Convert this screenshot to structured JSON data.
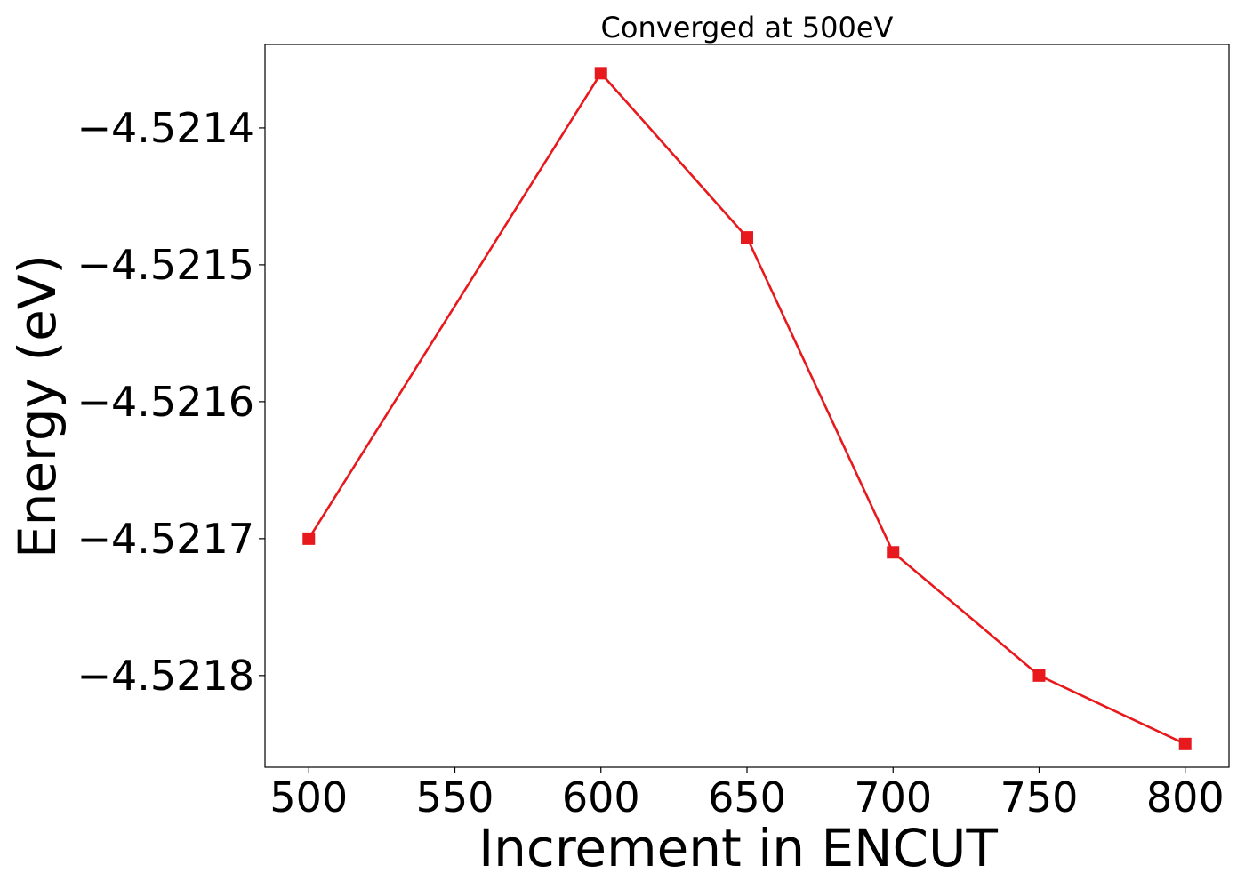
{
  "chart_data": {
    "type": "line",
    "title": "Converged at 500eV",
    "xlabel": "Increment in ENCUT",
    "ylabel": "Energy (eV)",
    "x": [
      500,
      600,
      650,
      700,
      750,
      800
    ],
    "series": [
      {
        "values": [
          -4.5217,
          -4.52136,
          -4.52148,
          -4.52171,
          -4.5218,
          -4.52185
        ],
        "color": "#e8191c",
        "marker": "square"
      }
    ],
    "xlim": [
      485,
      815
    ],
    "ylim": [
      -4.521867,
      -4.521339
    ],
    "xticks": [
      500,
      550,
      600,
      650,
      700,
      750,
      800
    ],
    "yticks": [
      -4.5218,
      -4.5217,
      -4.5216,
      -4.5215,
      -4.5214
    ],
    "xtick_labels": [
      "500",
      "550",
      "600",
      "650",
      "700",
      "750",
      "800"
    ],
    "ytick_labels": [
      "−4.5218",
      "−4.5217",
      "−4.5216",
      "−4.5215",
      "−4.5214"
    ],
    "grid": false,
    "legend": "none"
  }
}
